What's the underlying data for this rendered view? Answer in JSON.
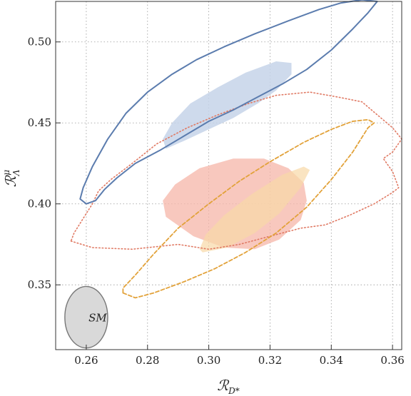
{
  "chart_data": {
    "type": "contour",
    "xlim": [
      0.25,
      0.363
    ],
    "ylim": [
      0.31,
      0.525
    ],
    "xticks": [
      0.26,
      0.28,
      0.3,
      0.32,
      0.34,
      0.36
    ],
    "yticks": [
      0.35,
      0.4,
      0.45,
      0.5
    ],
    "xtick_labels": [
      "0.26",
      "0.28",
      "0.30",
      "0.32",
      "0.34",
      "0.36"
    ],
    "ytick_labels": [
      "0.35",
      "0.40",
      "0.45",
      "0.50"
    ],
    "xlabel": {
      "main": "ℛ",
      "sub": "D*"
    },
    "ylabel": {
      "main": "ℛ",
      "sub": "Λ",
      "sup": "μ"
    },
    "grid": true,
    "colors": {
      "blue_line": "#5b7cae",
      "blue_fill": "#c5d3e9",
      "red_fill": "#f5b6a8",
      "red_dotted": "#e07a64",
      "orange_fill": "#f8d9a6",
      "orange_dashed": "#e2a23a",
      "sm_fill": "#d9d9d9",
      "sm_edge": "#777777"
    },
    "regions": [
      {
        "id": "blue-outer",
        "style": "solid-line",
        "points": [
          [
            0.26,
            0.4
          ],
          [
            0.263,
            0.402
          ],
          [
            0.266,
            0.409
          ],
          [
            0.27,
            0.416
          ],
          [
            0.276,
            0.425
          ],
          [
            0.284,
            0.433
          ],
          [
            0.292,
            0.442
          ],
          [
            0.3,
            0.451
          ],
          [
            0.308,
            0.458
          ],
          [
            0.316,
            0.466
          ],
          [
            0.324,
            0.474
          ],
          [
            0.332,
            0.483
          ],
          [
            0.34,
            0.495
          ],
          [
            0.347,
            0.508
          ],
          [
            0.352,
            0.518
          ],
          [
            0.355,
            0.525
          ],
          [
            0.35,
            0.526
          ],
          [
            0.343,
            0.524
          ],
          [
            0.336,
            0.52
          ],
          [
            0.326,
            0.513
          ],
          [
            0.315,
            0.505
          ],
          [
            0.305,
            0.497
          ],
          [
            0.296,
            0.489
          ],
          [
            0.288,
            0.48
          ],
          [
            0.28,
            0.469
          ],
          [
            0.273,
            0.456
          ],
          [
            0.267,
            0.44
          ],
          [
            0.262,
            0.423
          ],
          [
            0.259,
            0.41
          ],
          [
            0.258,
            0.403
          ],
          [
            0.26,
            0.4
          ]
        ]
      },
      {
        "id": "blue-inner",
        "style": "fill",
        "points": [
          [
            0.286,
            0.434
          ],
          [
            0.292,
            0.439
          ],
          [
            0.3,
            0.446
          ],
          [
            0.308,
            0.453
          ],
          [
            0.316,
            0.462
          ],
          [
            0.322,
            0.47
          ],
          [
            0.327,
            0.48
          ],
          [
            0.327,
            0.487
          ],
          [
            0.322,
            0.488
          ],
          [
            0.312,
            0.481
          ],
          [
            0.303,
            0.472
          ],
          [
            0.294,
            0.462
          ],
          [
            0.288,
            0.45
          ],
          [
            0.285,
            0.44
          ],
          [
            0.286,
            0.434
          ]
        ]
      },
      {
        "id": "red-inner",
        "style": "fill",
        "points": [
          [
            0.286,
            0.392
          ],
          [
            0.295,
            0.38
          ],
          [
            0.305,
            0.373
          ],
          [
            0.315,
            0.372
          ],
          [
            0.323,
            0.378
          ],
          [
            0.33,
            0.39
          ],
          [
            0.332,
            0.402
          ],
          [
            0.331,
            0.413
          ],
          [
            0.326,
            0.422
          ],
          [
            0.318,
            0.428
          ],
          [
            0.308,
            0.428
          ],
          [
            0.297,
            0.422
          ],
          [
            0.289,
            0.412
          ],
          [
            0.285,
            0.402
          ],
          [
            0.286,
            0.392
          ]
        ]
      },
      {
        "id": "orange-inner",
        "style": "fill",
        "points": [
          [
            0.298,
            0.37
          ],
          [
            0.306,
            0.373
          ],
          [
            0.315,
            0.382
          ],
          [
            0.323,
            0.394
          ],
          [
            0.33,
            0.41
          ],
          [
            0.333,
            0.421
          ],
          [
            0.331,
            0.423
          ],
          [
            0.324,
            0.418
          ],
          [
            0.314,
            0.406
          ],
          [
            0.305,
            0.393
          ],
          [
            0.299,
            0.381
          ],
          [
            0.297,
            0.372
          ],
          [
            0.298,
            0.37
          ]
        ]
      },
      {
        "id": "red-outer",
        "style": "dotted-line",
        "points": [
          [
            0.255,
            0.377
          ],
          [
            0.262,
            0.373
          ],
          [
            0.275,
            0.372
          ],
          [
            0.29,
            0.375
          ],
          [
            0.3,
            0.372
          ],
          [
            0.31,
            0.375
          ],
          [
            0.32,
            0.38
          ],
          [
            0.33,
            0.385
          ],
          [
            0.338,
            0.387
          ],
          [
            0.346,
            0.393
          ],
          [
            0.354,
            0.4
          ],
          [
            0.36,
            0.407
          ],
          [
            0.362,
            0.41
          ],
          [
            0.36,
            0.42
          ],
          [
            0.357,
            0.428
          ],
          [
            0.36,
            0.432
          ],
          [
            0.363,
            0.44
          ],
          [
            0.36,
            0.447
          ],
          [
            0.355,
            0.455
          ],
          [
            0.35,
            0.463
          ],
          [
            0.342,
            0.466
          ],
          [
            0.333,
            0.469
          ],
          [
            0.322,
            0.467
          ],
          [
            0.313,
            0.462
          ],
          [
            0.303,
            0.455
          ],
          [
            0.293,
            0.447
          ],
          [
            0.283,
            0.437
          ],
          [
            0.275,
            0.425
          ],
          [
            0.268,
            0.415
          ],
          [
            0.264,
            0.408
          ],
          [
            0.262,
            0.4
          ],
          [
            0.26,
            0.394
          ],
          [
            0.258,
            0.388
          ],
          [
            0.256,
            0.382
          ],
          [
            0.255,
            0.377
          ]
        ]
      },
      {
        "id": "orange-outer",
        "style": "dashed-line",
        "points": [
          [
            0.272,
            0.345
          ],
          [
            0.276,
            0.342
          ],
          [
            0.282,
            0.345
          ],
          [
            0.292,
            0.352
          ],
          [
            0.302,
            0.36
          ],
          [
            0.312,
            0.37
          ],
          [
            0.322,
            0.382
          ],
          [
            0.332,
            0.398
          ],
          [
            0.34,
            0.415
          ],
          [
            0.347,
            0.432
          ],
          [
            0.352,
            0.447
          ],
          [
            0.354,
            0.45
          ],
          [
            0.352,
            0.452
          ],
          [
            0.347,
            0.451
          ],
          [
            0.34,
            0.446
          ],
          [
            0.331,
            0.438
          ],
          [
            0.32,
            0.426
          ],
          [
            0.31,
            0.414
          ],
          [
            0.3,
            0.4
          ],
          [
            0.29,
            0.385
          ],
          [
            0.282,
            0.369
          ],
          [
            0.276,
            0.356
          ],
          [
            0.272,
            0.348
          ],
          [
            0.272,
            0.345
          ]
        ]
      }
    ],
    "sm_point": {
      "label": "SM",
      "center": [
        0.26,
        0.33
      ],
      "radius_x": 0.007,
      "radius_y": 0.019
    }
  }
}
